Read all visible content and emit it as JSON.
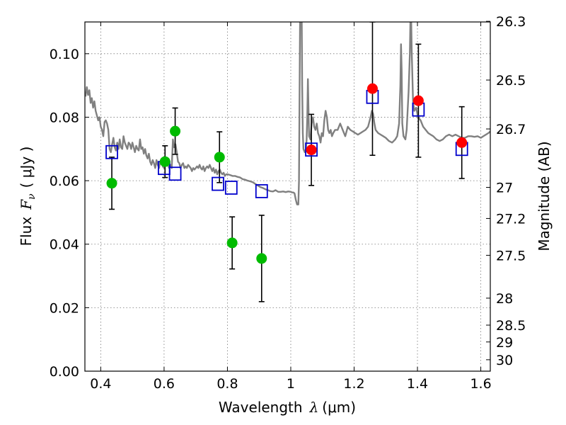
{
  "chart_data": {
    "type": "scatter",
    "xlabel": "Wavelength",
    "xlabel_symbol": "λ",
    "xlabel_unit": "(μm)",
    "ylabel": "Flux",
    "ylabel_symbol": "F",
    "ylabel_subscript": "ν",
    "ylabel_unit": "( μJy )",
    "y2label": "Magnitude (AB)",
    "xlim": [
      0.35,
      1.63
    ],
    "ylim": [
      0.0,
      0.11
    ],
    "x_ticks": [
      0.4,
      0.6,
      0.8,
      1.0,
      1.2,
      1.4,
      1.6
    ],
    "x_tick_labels": [
      "0.4",
      "0.6",
      "0.8",
      "1",
      "1.2",
      "1.4",
      "1.6"
    ],
    "y_ticks": [
      0.0,
      0.02,
      0.04,
      0.06,
      0.08,
      0.1
    ],
    "y_tick_labels": [
      "0.00",
      "0.02",
      "0.04",
      "0.06",
      "0.08",
      "0.10"
    ],
    "y2_ticks": [
      {
        "label": "26.3",
        "flux": 0.1102
      },
      {
        "label": "26.5",
        "flux": 0.0917
      },
      {
        "label": "26.7",
        "flux": 0.0763
      },
      {
        "label": "27",
        "flux": 0.0579
      },
      {
        "label": "27.2",
        "flux": 0.0481
      },
      {
        "label": "27.5",
        "flux": 0.0365
      },
      {
        "label": "28",
        "flux": 0.023
      },
      {
        "label": "28.5",
        "flux": 0.0145
      },
      {
        "label": "29",
        "flux": 0.0092
      },
      {
        "label": "30",
        "flux": 0.0036
      }
    ],
    "grid": true,
    "colors": {
      "model": "#808080",
      "green_points": "#00bb00",
      "red_points": "#ff0000",
      "model_boxes": "#0000cc",
      "errorbars": "#000000"
    },
    "series": [
      {
        "marker": "line",
        "points": [
          [
            0.352,
            0.0865
          ],
          [
            0.356,
            0.0895
          ],
          [
            0.36,
            0.087
          ],
          [
            0.364,
            0.0885
          ],
          [
            0.368,
            0.0845
          ],
          [
            0.372,
            0.086
          ],
          [
            0.376,
            0.083
          ],
          [
            0.38,
            0.085
          ],
          [
            0.384,
            0.082
          ],
          [
            0.388,
            0.0805
          ],
          [
            0.392,
            0.079
          ],
          [
            0.396,
            0.08
          ],
          [
            0.4,
            0.077
          ],
          [
            0.404,
            0.076
          ],
          [
            0.408,
            0.074
          ],
          [
            0.412,
            0.0785
          ],
          [
            0.416,
            0.079
          ],
          [
            0.42,
            0.078
          ],
          [
            0.424,
            0.076
          ],
          [
            0.428,
            0.07
          ],
          [
            0.432,
            0.069
          ],
          [
            0.436,
            0.0715
          ],
          [
            0.44,
            0.0735
          ],
          [
            0.444,
            0.0705
          ],
          [
            0.448,
            0.0695
          ],
          [
            0.452,
            0.072
          ],
          [
            0.456,
            0.07
          ],
          [
            0.46,
            0.073
          ],
          [
            0.464,
            0.0705
          ],
          [
            0.468,
            0.07
          ],
          [
            0.472,
            0.074
          ],
          [
            0.476,
            0.072
          ],
          [
            0.48,
            0.071
          ],
          [
            0.484,
            0.07
          ],
          [
            0.488,
            0.072
          ],
          [
            0.492,
            0.0715
          ],
          [
            0.496,
            0.07
          ],
          [
            0.5,
            0.072
          ],
          [
            0.504,
            0.0705
          ],
          [
            0.508,
            0.069
          ],
          [
            0.512,
            0.071
          ],
          [
            0.516,
            0.07
          ],
          [
            0.52,
            0.0695
          ],
          [
            0.524,
            0.073
          ],
          [
            0.528,
            0.07
          ],
          [
            0.532,
            0.0705
          ],
          [
            0.536,
            0.0685
          ],
          [
            0.54,
            0.07
          ],
          [
            0.544,
            0.068
          ],
          [
            0.548,
            0.067
          ],
          [
            0.552,
            0.0685
          ],
          [
            0.556,
            0.066
          ],
          [
            0.56,
            0.065
          ],
          [
            0.564,
            0.0665
          ],
          [
            0.568,
            0.0655
          ],
          [
            0.572,
            0.064
          ],
          [
            0.576,
            0.0665
          ],
          [
            0.58,
            0.065
          ],
          [
            0.584,
            0.064
          ],
          [
            0.588,
            0.066
          ],
          [
            0.592,
            0.0655
          ],
          [
            0.596,
            0.0645
          ],
          [
            0.6,
            0.064
          ],
          [
            0.604,
            0.065
          ],
          [
            0.608,
            0.067
          ],
          [
            0.612,
            0.065
          ],
          [
            0.616,
            0.064
          ],
          [
            0.62,
            0.065
          ],
          [
            0.624,
            0.064
          ],
          [
            0.628,
            0.073
          ],
          [
            0.632,
            0.0705
          ],
          [
            0.636,
            0.0715
          ],
          [
            0.64,
            0.069
          ],
          [
            0.644,
            0.066
          ],
          [
            0.648,
            0.0655
          ],
          [
            0.652,
            0.064
          ],
          [
            0.656,
            0.065
          ],
          [
            0.66,
            0.0655
          ],
          [
            0.664,
            0.064
          ],
          [
            0.668,
            0.0645
          ],
          [
            0.672,
            0.064
          ],
          [
            0.676,
            0.065
          ],
          [
            0.68,
            0.0645
          ],
          [
            0.684,
            0.064
          ],
          [
            0.688,
            0.063
          ],
          [
            0.692,
            0.064
          ],
          [
            0.696,
            0.0635
          ],
          [
            0.7,
            0.064
          ],
          [
            0.704,
            0.0645
          ],
          [
            0.708,
            0.064
          ],
          [
            0.712,
            0.065
          ],
          [
            0.716,
            0.064
          ],
          [
            0.72,
            0.0635
          ],
          [
            0.724,
            0.0645
          ],
          [
            0.728,
            0.063
          ],
          [
            0.732,
            0.064
          ],
          [
            0.736,
            0.0645
          ],
          [
            0.74,
            0.064
          ],
          [
            0.744,
            0.065
          ],
          [
            0.748,
            0.064
          ],
          [
            0.752,
            0.063
          ],
          [
            0.756,
            0.064
          ],
          [
            0.76,
            0.0625
          ],
          [
            0.764,
            0.0635
          ],
          [
            0.768,
            0.062
          ],
          [
            0.772,
            0.063
          ],
          [
            0.776,
            0.0635
          ],
          [
            0.78,
            0.0625
          ],
          [
            0.784,
            0.062
          ],
          [
            0.788,
            0.0625
          ],
          [
            0.792,
            0.0615
          ],
          [
            0.796,
            0.062
          ],
          [
            0.8,
            0.062
          ],
          [
            0.808,
            0.0618
          ],
          [
            0.816,
            0.0615
          ],
          [
            0.824,
            0.0615
          ],
          [
            0.832,
            0.0612
          ],
          [
            0.84,
            0.061
          ],
          [
            0.848,
            0.0605
          ],
          [
            0.856,
            0.0603
          ],
          [
            0.864,
            0.06
          ],
          [
            0.872,
            0.0598
          ],
          [
            0.88,
            0.0595
          ],
          [
            0.888,
            0.059
          ],
          [
            0.896,
            0.0585
          ],
          [
            0.904,
            0.058
          ],
          [
            0.912,
            0.0577
          ],
          [
            0.92,
            0.0573
          ],
          [
            0.928,
            0.057
          ],
          [
            0.936,
            0.0567
          ],
          [
            0.944,
            0.0566
          ],
          [
            0.952,
            0.057
          ],
          [
            0.96,
            0.0565
          ],
          [
            0.968,
            0.0565
          ],
          [
            0.976,
            0.0566
          ],
          [
            0.984,
            0.0564
          ],
          [
            0.992,
            0.0566
          ],
          [
            1.0,
            0.0565
          ],
          [
            1.004,
            0.0563
          ],
          [
            1.008,
            0.0563
          ],
          [
            1.012,
            0.056
          ],
          [
            1.016,
            0.054
          ],
          [
            1.02,
            0.0525
          ],
          [
            1.024,
            0.0525
          ],
          [
            1.026,
            0.06
          ],
          [
            1.028,
            0.09
          ],
          [
            1.03,
            0.12
          ],
          [
            1.034,
            0.12
          ],
          [
            1.036,
            0.09
          ],
          [
            1.038,
            0.075
          ],
          [
            1.04,
            0.07
          ],
          [
            1.044,
            0.069
          ],
          [
            1.048,
            0.07
          ],
          [
            1.05,
            0.073
          ],
          [
            1.052,
            0.08
          ],
          [
            1.054,
            0.092
          ],
          [
            1.056,
            0.083
          ],
          [
            1.058,
            0.074
          ],
          [
            1.062,
            0.073
          ],
          [
            1.066,
            0.078
          ],
          [
            1.07,
            0.08
          ],
          [
            1.074,
            0.077
          ],
          [
            1.078,
            0.076
          ],
          [
            1.082,
            0.078
          ],
          [
            1.086,
            0.075
          ],
          [
            1.09,
            0.074
          ],
          [
            1.094,
            0.072
          ],
          [
            1.098,
            0.075
          ],
          [
            1.102,
            0.074
          ],
          [
            1.106,
            0.079
          ],
          [
            1.11,
            0.082
          ],
          [
            1.114,
            0.08
          ],
          [
            1.118,
            0.076
          ],
          [
            1.122,
            0.075
          ],
          [
            1.126,
            0.076
          ],
          [
            1.13,
            0.074
          ],
          [
            1.134,
            0.075
          ],
          [
            1.14,
            0.076
          ],
          [
            1.148,
            0.076
          ],
          [
            1.156,
            0.078
          ],
          [
            1.164,
            0.076
          ],
          [
            1.172,
            0.074
          ],
          [
            1.18,
            0.077
          ],
          [
            1.188,
            0.076
          ],
          [
            1.196,
            0.0755
          ],
          [
            1.204,
            0.075
          ],
          [
            1.212,
            0.0745
          ],
          [
            1.22,
            0.075
          ],
          [
            1.228,
            0.0755
          ],
          [
            1.236,
            0.076
          ],
          [
            1.244,
            0.077
          ],
          [
            1.252,
            0.08
          ],
          [
            1.256,
            0.082
          ],
          [
            1.26,
            0.081
          ],
          [
            1.264,
            0.078
          ],
          [
            1.268,
            0.076
          ],
          [
            1.276,
            0.075
          ],
          [
            1.284,
            0.0745
          ],
          [
            1.292,
            0.074
          ],
          [
            1.3,
            0.0735
          ],
          [
            1.31,
            0.0725
          ],
          [
            1.32,
            0.072
          ],
          [
            1.33,
            0.073
          ],
          [
            1.336,
            0.074
          ],
          [
            1.342,
            0.078
          ],
          [
            1.346,
            0.09
          ],
          [
            1.348,
            0.103
          ],
          [
            1.35,
            0.095
          ],
          [
            1.352,
            0.078
          ],
          [
            1.356,
            0.074
          ],
          [
            1.362,
            0.073
          ],
          [
            1.366,
            0.076
          ],
          [
            1.372,
            0.088
          ],
          [
            1.376,
            0.1
          ],
          [
            1.378,
            0.112
          ],
          [
            1.38,
            0.112
          ],
          [
            1.382,
            0.1
          ],
          [
            1.386,
            0.085
          ],
          [
            1.39,
            0.082
          ],
          [
            1.396,
            0.083
          ],
          [
            1.402,
            0.08
          ],
          [
            1.41,
            0.079
          ],
          [
            1.418,
            0.077
          ],
          [
            1.426,
            0.076
          ],
          [
            1.434,
            0.075
          ],
          [
            1.442,
            0.0745
          ],
          [
            1.45,
            0.074
          ],
          [
            1.46,
            0.073
          ],
          [
            1.47,
            0.0725
          ],
          [
            1.48,
            0.073
          ],
          [
            1.49,
            0.074
          ],
          [
            1.5,
            0.0745
          ],
          [
            1.51,
            0.074
          ],
          [
            1.52,
            0.0745
          ],
          [
            1.53,
            0.074
          ],
          [
            1.54,
            0.0735
          ],
          [
            1.55,
            0.0735
          ],
          [
            1.56,
            0.074
          ],
          [
            1.57,
            0.074
          ],
          [
            1.58,
            0.0738
          ],
          [
            1.59,
            0.074
          ],
          [
            1.6,
            0.0735
          ],
          [
            1.608,
            0.074
          ],
          [
            1.616,
            0.0745
          ],
          [
            1.624,
            0.075
          ],
          [
            1.63,
            0.0755
          ]
        ]
      },
      {
        "marker": "square",
        "points": [
          [
            0.435,
            0.069
          ],
          [
            0.6,
            0.064
          ],
          [
            0.635,
            0.0622
          ],
          [
            0.77,
            0.059
          ],
          [
            0.812,
            0.0578
          ],
          [
            0.908,
            0.0567
          ],
          [
            1.065,
            0.0698
          ],
          [
            1.258,
            0.0864
          ],
          [
            1.403,
            0.0824
          ],
          [
            1.54,
            0.07
          ]
        ]
      },
      {
        "marker": "circle",
        "points": [
          [
            0.435,
            0.0592,
            0.0082,
            0.0082
          ],
          [
            0.603,
            0.066,
            0.005,
            0.005
          ],
          [
            0.635,
            0.0756,
            0.0073,
            0.0073
          ],
          [
            0.775,
            0.0674,
            0.008,
            0.008
          ],
          [
            0.815,
            0.0404,
            0.0082,
            0.0082
          ],
          [
            0.908,
            0.0355,
            0.0136,
            0.0136
          ]
        ]
      },
      {
        "marker": "circle",
        "points": [
          [
            1.065,
            0.0697,
            0.0112,
            0.0112
          ],
          [
            1.258,
            0.089,
            0.021,
            0.021
          ],
          [
            1.403,
            0.0852,
            0.0178,
            0.0178
          ],
          [
            1.54,
            0.072,
            0.0113,
            0.0113
          ]
        ]
      }
    ]
  }
}
